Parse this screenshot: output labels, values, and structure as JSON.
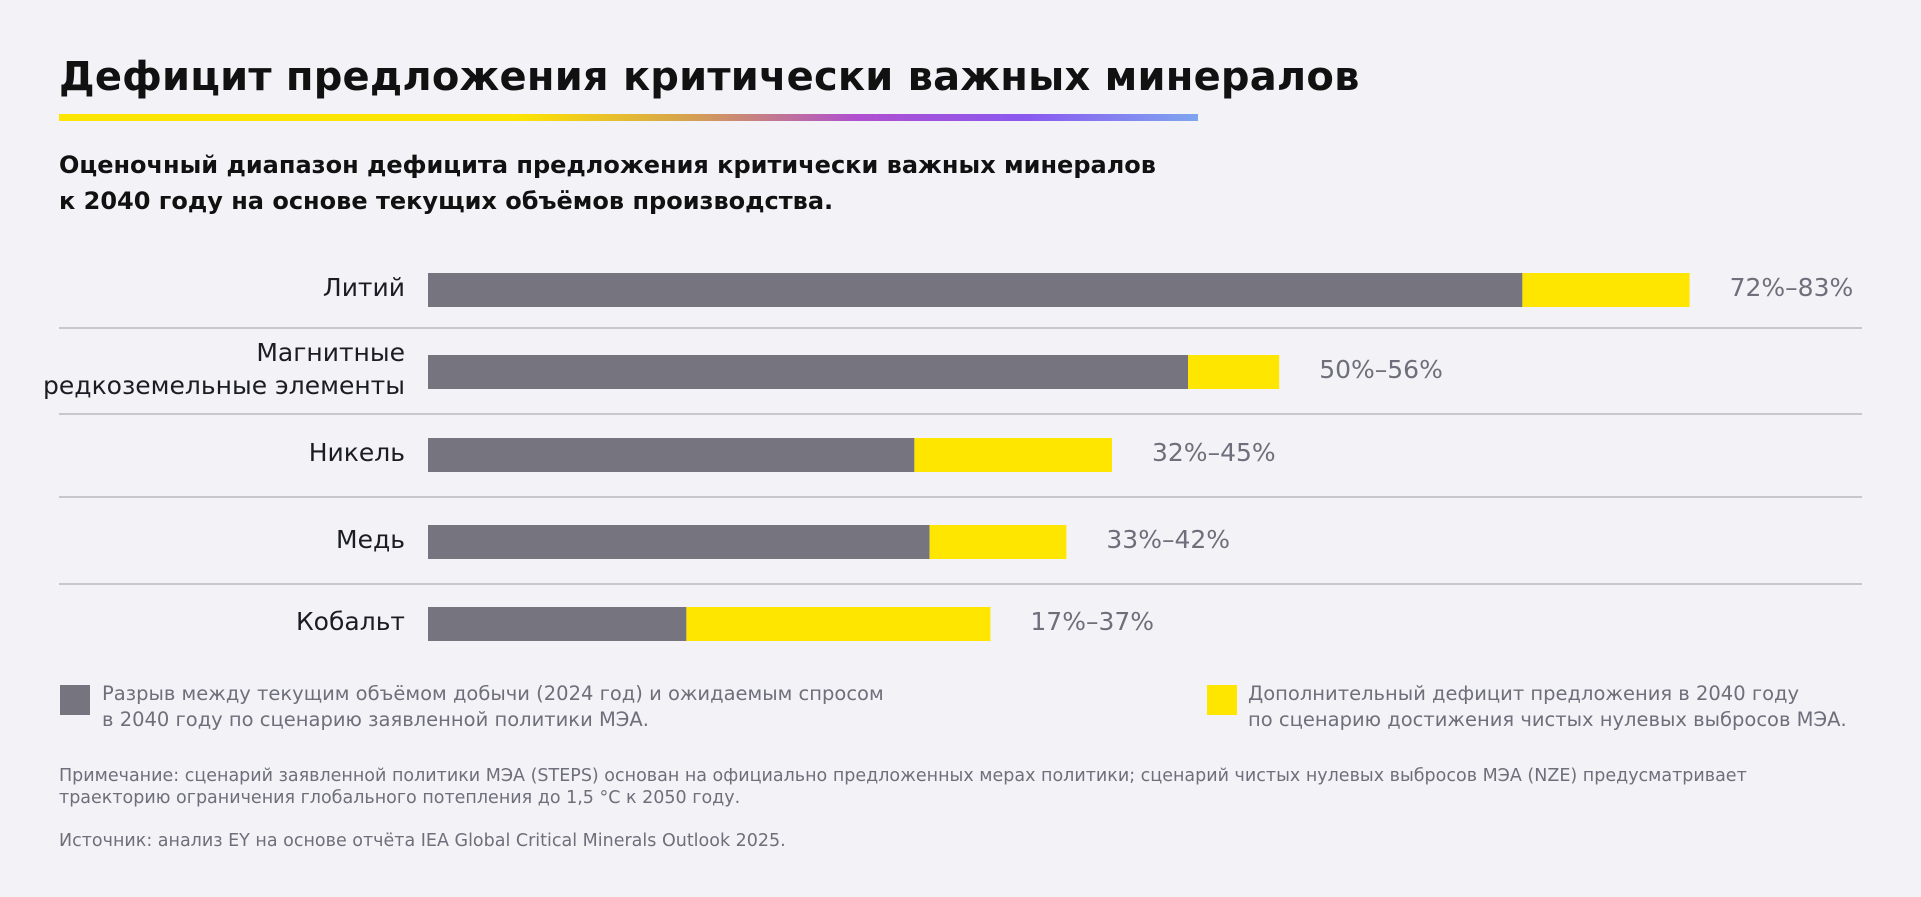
{
  "title": "Дефицит предложения критически важных минералов",
  "subtitle": "Оценочный диапазон дефицита предложения критически важных минералов\nк 2040 году на основе текущих объёмов производства.",
  "colors": {
    "gap": "#75747f",
    "extra": "#ffe600",
    "separator": "#c8c7ce"
  },
  "chart_data": {
    "type": "bar",
    "orientation": "horizontal",
    "stacked": true,
    "categories": [
      "Литий",
      "Магнитные\nредкоземельные элементы",
      "Никель",
      "Медь",
      "Кобальт"
    ],
    "range_labels": [
      "72%–83%",
      "50%–56%",
      "32%–45%",
      "33%–42%",
      "17%–37%"
    ],
    "series": [
      {
        "name": "Разрыв между текущим объёмом добычи (2024 год) и ожидаемым спросом\nв 2040 году по сценарию заявленной политики МЭА.",
        "color": "#75747f",
        "values": [
          72,
          50,
          32,
          33,
          17
        ]
      },
      {
        "name": "Дополнительный дефицит предложения в 2040 году\nпо сценарию достижения чистых нулевых выбросов МЭА.",
        "color": "#ffe600",
        "values": [
          11,
          6,
          13,
          9,
          20
        ]
      }
    ],
    "xlim": [
      0,
      100
    ],
    "grid": false
  },
  "note": "Примечание: сценарий заявленной политики МЭА (STEPS) основан на официально предложенных мерах политики; сценарий чистых нулевых выбросов МЭА (NZE) предусматривает траекторию ограничения глобального потепления до 1,5 °C к 2050 году.",
  "source": "Источник: анализ EY на основе отчёта IEA Global Critical Minerals Outlook 2025."
}
